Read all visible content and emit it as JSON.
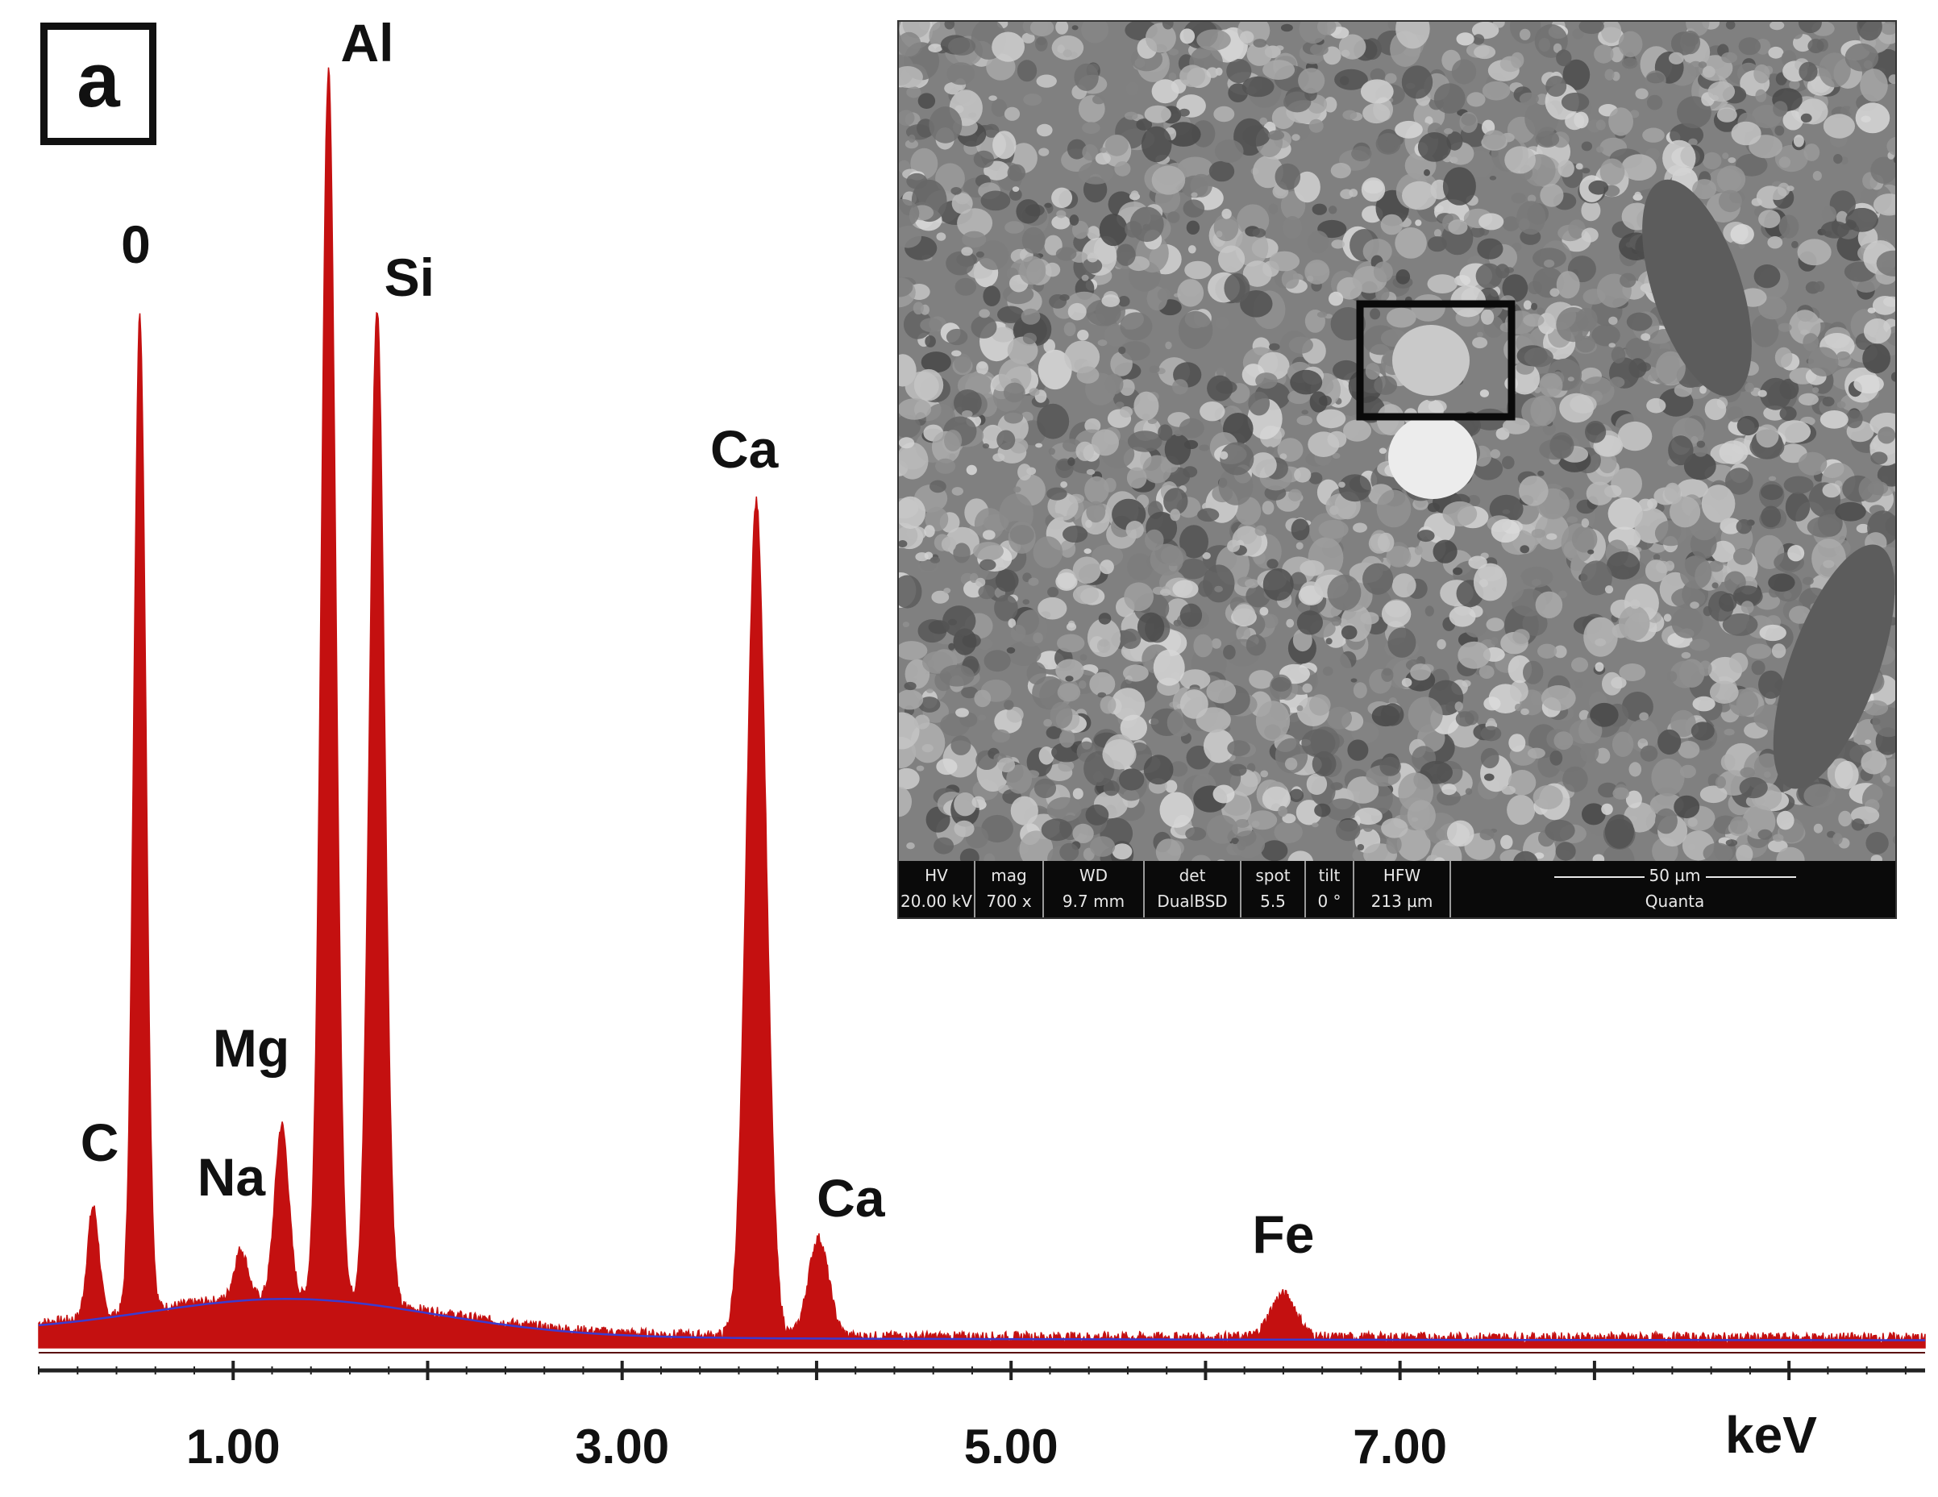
{
  "panel": {
    "label": "a"
  },
  "chart_data": {
    "type": "area",
    "title": "",
    "xlabel": "keV",
    "ylabel": "",
    "xlim": [
      0,
      9.7
    ],
    "ylim": [
      0,
      100
    ],
    "x_ticks_major": [
      1.0,
      3.0,
      5.0,
      7.0
    ],
    "x_tick_labels": [
      "1.00",
      "3.00",
      "5.00",
      "7.00"
    ],
    "x_ticks_minor": [
      2.0,
      4.0,
      6.0,
      8.0,
      9.0
    ],
    "grid": false,
    "series": [
      {
        "peaks": [
          {
            "element": "C",
            "energy": 0.28,
            "height": 9
          },
          {
            "element": "0",
            "energy": 0.52,
            "height": 81
          },
          {
            "element": "Na",
            "energy": 1.04,
            "height": 4
          },
          {
            "element": "Mg",
            "energy": 1.25,
            "height": 14
          },
          {
            "element": "Al",
            "energy": 1.49,
            "height": 100
          },
          {
            "element": "Si",
            "energy": 1.74,
            "height": 81
          },
          {
            "element": "Ca",
            "energy": 3.69,
            "height": 68
          },
          {
            "element": "Ca",
            "energy": 4.01,
            "height": 8
          },
          {
            "element": "Fe",
            "energy": 6.4,
            "height": 3.5
          }
        ],
        "continuum": {
          "peak_energy": 1.3,
          "peak_height": 3
        }
      }
    ],
    "colors": {
      "spectrum": "#c41010",
      "background_line": "#3b3bd0",
      "axis": "#222222"
    }
  },
  "sem_inset": {
    "fields": [
      {
        "header": "HV",
        "value": "20.00 kV"
      },
      {
        "header": "mag",
        "value": "700 x"
      },
      {
        "header": "WD",
        "value": "9.7 mm"
      },
      {
        "header": "det",
        "value": "DualBSD"
      },
      {
        "header": "spot",
        "value": "5.5"
      },
      {
        "header": "tilt",
        "value": "0 °"
      },
      {
        "header": "HFW",
        "value": "213 µm"
      }
    ],
    "scale_bar": "50 µm",
    "instrument": "Quanta"
  }
}
